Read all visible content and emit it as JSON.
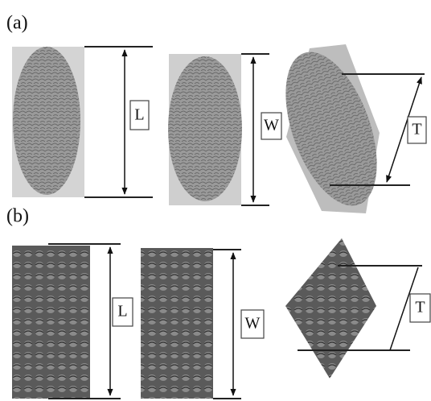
{
  "panels": [
    {
      "label": "(a)",
      "dimensions": [
        "L",
        "W",
        "T"
      ]
    },
    {
      "label": "(b)",
      "dimensions": [
        "L",
        "W",
        "T"
      ]
    }
  ]
}
